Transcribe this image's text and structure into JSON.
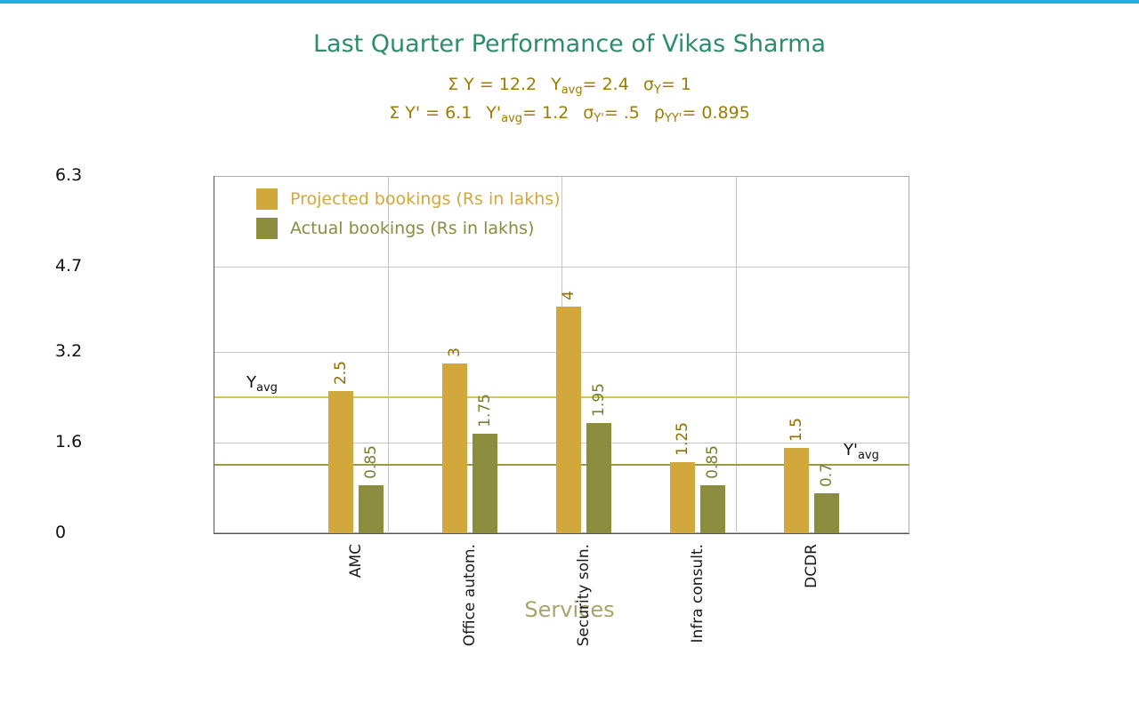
{
  "palette": {
    "accent_bar": "#25aae1",
    "title": "#2e8b6d",
    "stats": "#9c7d00",
    "grid": "#c6c6c6",
    "axis": "#555555",
    "box_border": "#ababab",
    "tick_label": "#111111",
    "category_label": "#1a1a1a",
    "xlabel": "#a6a66b",
    "ref_label": "#111111"
  },
  "stats": {
    "line1": [
      {
        "t": "Σ Y = 12.2"
      },
      {
        "gap": true
      },
      {
        "t": "Y"
      },
      {
        "t": "avg",
        "sub": true
      },
      {
        "t": "= 2.4"
      },
      {
        "gap": true
      },
      {
        "t": "σ"
      },
      {
        "t": "Y",
        "sub": true
      },
      {
        "t": "= 1"
      }
    ],
    "line2": [
      {
        "t": "Σ Y' = 6.1"
      },
      {
        "gap": true
      },
      {
        "t": "Y'"
      },
      {
        "t": "avg",
        "sub": true
      },
      {
        "t": "= 1.2"
      },
      {
        "gap": true
      },
      {
        "t": "σ"
      },
      {
        "t": "Y'",
        "sub": true
      },
      {
        "t": "= .5"
      },
      {
        "gap": true
      },
      {
        "t": "ρ"
      },
      {
        "t": "YY'",
        "sub": true
      },
      {
        "t": "= 0.895"
      }
    ]
  },
  "chart_data": {
    "type": "bar",
    "title": "Last Quarter Performance of Vikas Sharma",
    "categories": [
      "AMC",
      "Office autom.",
      "Security soln.",
      "Infra consult.",
      "DCDR"
    ],
    "series": [
      {
        "id": "projected",
        "name": "Projected bookings (Rs in lakhs)",
        "values": [
          2.5,
          3,
          4,
          1.25,
          1.5
        ],
        "value_labels": [
          "2.5",
          "3",
          "4",
          "1.25",
          "1.5"
        ],
        "color": "#d1a83c",
        "label_color": "#8f6f00"
      },
      {
        "id": "actual",
        "name": "Actual bookings (Rs in lakhs)",
        "values": [
          0.85,
          1.75,
          1.95,
          0.85,
          0.7
        ],
        "value_labels": [
          "0.85",
          "1.75",
          "1.95",
          "0.85",
          "0.7"
        ],
        "color": "#8b8c3e",
        "label_color": "#7c7d33"
      }
    ],
    "xlabel": "Services",
    "ylabel": "",
    "ylim": [
      0,
      6.3
    ],
    "y_ticks": [
      0,
      1.6,
      3.2,
      4.7,
      6.3
    ],
    "y_tick_labels": [
      "0",
      "1.6",
      "3.2",
      "4.7",
      "6.3"
    ],
    "grid": true,
    "legend_position": "top-left",
    "reference_lines": [
      {
        "id": "y-avg",
        "value": 2.4,
        "color": "#d2c55e",
        "label_main": "Y",
        "label_sub": "avg",
        "label_side": "left"
      },
      {
        "id": "y-prime-avg",
        "value": 1.2,
        "color": "#9b9c4a",
        "label_main": "Y'",
        "label_sub": "avg",
        "label_side": "right"
      }
    ]
  }
}
